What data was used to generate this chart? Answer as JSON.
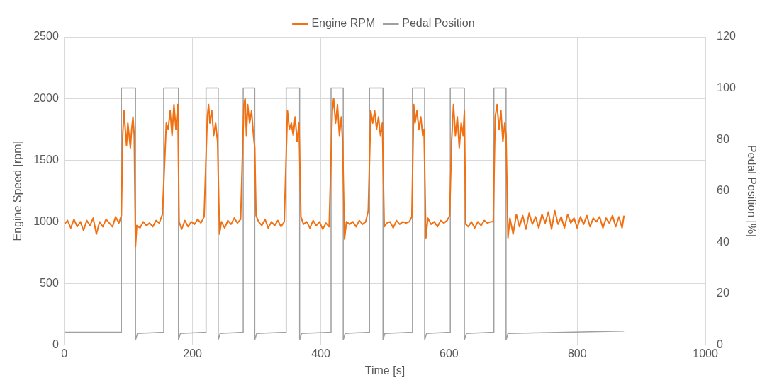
{
  "chart_data": {
    "type": "line",
    "xlabel": "Time [s]",
    "ylabel": "Engine Speed [rpm]",
    "y2label": "Pedal Position [%]",
    "xlim": [
      0,
      1000
    ],
    "xticks": [
      0,
      200,
      400,
      600,
      800,
      1000
    ],
    "ylim": [
      0,
      2500
    ],
    "yticks": [
      0,
      500,
      1000,
      1500,
      2000,
      2500
    ],
    "y2lim": [
      0,
      120
    ],
    "y2ticks": [
      0,
      20,
      40,
      60,
      80,
      100,
      120
    ],
    "grid": true,
    "legend": "top",
    "marker": "none",
    "line_style": "solid",
    "series": [
      {
        "name": "Engine RPM",
        "color": "#f07012",
        "x": [
          0,
          5,
          10,
          15,
          20,
          25,
          30,
          35,
          40,
          45,
          50,
          55,
          60,
          65,
          70,
          75,
          80,
          85,
          89,
          91,
          93,
          95,
          97,
          99,
          101,
          103,
          105,
          107,
          109,
          111,
          113,
          118,
          123,
          128,
          133,
          138,
          143,
          148,
          153,
          157,
          159,
          162,
          165,
          168,
          171,
          174,
          177,
          179,
          183,
          188,
          193,
          198,
          203,
          208,
          213,
          218,
          223,
          225,
          227,
          230,
          233,
          236,
          239,
          242,
          245,
          250,
          255,
          260,
          265,
          270,
          275,
          280,
          282,
          284,
          286,
          289,
          292,
          295,
          297,
          299,
          303,
          308,
          313,
          318,
          323,
          328,
          333,
          338,
          343,
          348,
          351,
          354,
          357,
          360,
          363,
          366,
          369,
          373,
          378,
          383,
          388,
          393,
          398,
          403,
          408,
          413,
          418,
          420,
          423,
          426,
          429,
          432,
          434,
          437,
          440,
          445,
          450,
          455,
          460,
          465,
          470,
          474,
          478,
          481,
          484,
          487,
          490,
          493,
          496,
          499,
          503,
          508,
          513,
          518,
          523,
          528,
          533,
          538,
          542,
          545,
          547,
          550,
          553,
          556,
          559,
          561,
          564,
          567,
          572,
          577,
          582,
          587,
          592,
          597,
          601,
          604,
          607,
          610,
          613,
          616,
          619,
          622,
          624,
          626,
          630,
          635,
          640,
          645,
          650,
          655,
          660,
          665,
          669,
          672,
          675,
          678,
          681,
          684,
          687,
          689,
          692,
          695,
          700,
          705,
          710,
          715,
          720,
          725,
          730,
          735,
          740,
          745,
          750,
          755,
          760,
          765,
          770,
          775,
          780,
          785,
          790,
          795,
          800,
          805,
          810,
          815,
          820,
          825,
          830,
          835,
          840,
          845,
          850,
          855,
          860,
          865,
          870,
          873
        ],
        "values": [
          980,
          1010,
          950,
          1020,
          960,
          1000,
          930,
          1010,
          970,
          1030,
          900,
          1000,
          960,
          1020,
          990,
          960,
          1040,
          990,
          1050,
          1700,
          1900,
          1750,
          1620,
          1800,
          1700,
          1600,
          1750,
          1850,
          1700,
          800,
          970,
          950,
          1000,
          970,
          990,
          960,
          1010,
          990,
          1060,
          1550,
          1800,
          1750,
          1900,
          1700,
          1950,
          1750,
          1950,
          1000,
          940,
          1010,
          960,
          1000,
          980,
          1020,
          990,
          1040,
          1850,
          1950,
          1800,
          1900,
          1700,
          1800,
          1650,
          900,
          1000,
          950,
          1010,
          980,
          1030,
          990,
          1020,
          1950,
          2000,
          1700,
          1950,
          1800,
          1900,
          1700,
          1600,
          1050,
          1000,
          970,
          1020,
          950,
          1000,
          970,
          1010,
          960,
          1000,
          1900,
          1750,
          1800,
          1700,
          1850,
          1650,
          1800,
          1040,
          980,
          1000,
          950,
          1010,
          970,
          1000,
          940,
          990,
          960,
          1900,
          2000,
          1800,
          1950,
          1700,
          1850,
          1650,
          860,
          1000,
          980,
          1000,
          960,
          1010,
          980,
          1000,
          1090,
          1900,
          1800,
          1900,
          1750,
          1850,
          1700,
          1800,
          960,
          990,
          1000,
          950,
          1010,
          980,
          1000,
          990,
          1000,
          1040,
          1950,
          1800,
          1900,
          1750,
          1850,
          1700,
          1750,
          870,
          1030,
          980,
          1000,
          960,
          1010,
          990,
          1010,
          1050,
          1650,
          1950,
          1700,
          1850,
          1600,
          1800,
          1700,
          1900,
          980,
          960,
          1000,
          950,
          1000,
          970,
          1010,
          990,
          1000,
          1000,
          1850,
          1950,
          1750,
          1900,
          1650,
          1800,
          1700,
          870,
          1030,
          900,
          1060,
          960,
          1050,
          940,
          1070,
          980,
          1040,
          950,
          1060,
          990,
          1080,
          940,
          1090,
          980,
          1040,
          950,
          1060,
          990,
          1030,
          950,
          1040,
          980,
          1050,
          960,
          1030,
          1000,
          1040,
          950,
          1030,
          990,
          1050,
          960,
          1040,
          950,
          1050
        ]
      },
      {
        "name": "Pedal Position",
        "color": "#a0a0a0",
        "axis": "y2",
        "x": [
          0,
          89,
          89,
          111,
          111,
          114,
          155,
          155,
          178,
          178,
          181,
          221,
          221,
          240,
          240,
          243,
          279,
          279,
          297,
          297,
          300,
          346,
          346,
          367,
          367,
          370,
          416,
          416,
          435,
          435,
          438,
          476,
          476,
          497,
          497,
          500,
          543,
          543,
          562,
          562,
          565,
          602,
          602,
          624,
          624,
          627,
          670,
          670,
          689,
          689,
          692,
          873
        ],
        "values": [
          5,
          5,
          100,
          100,
          2,
          4.5,
          5,
          100,
          100,
          2,
          4.5,
          5,
          100,
          100,
          2,
          4.5,
          5,
          100,
          100,
          2,
          4.5,
          5,
          100,
          100,
          2,
          4.5,
          5,
          100,
          100,
          2,
          4.5,
          5,
          100,
          100,
          2,
          4.5,
          5,
          100,
          100,
          2,
          4.5,
          5,
          100,
          100,
          2,
          4.5,
          5,
          100,
          100,
          2,
          4.5,
          5.5
        ]
      }
    ]
  }
}
